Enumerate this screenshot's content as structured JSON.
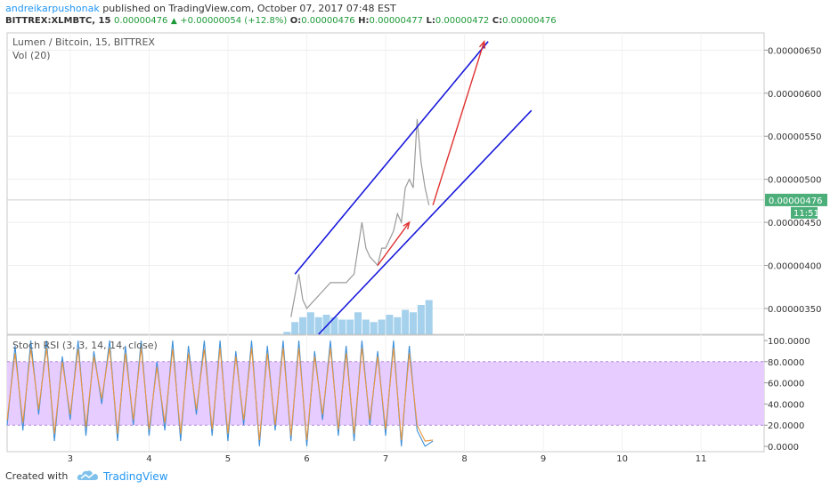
{
  "header": {
    "user": "andreikarpushonak",
    "published": "published on TradingView.com, October 07, 2017 07:48 EST",
    "symbol": "BITTREX:XLMBTC, 15",
    "price": "0.00000476",
    "change": "+0.00000054 (+12.8%)",
    "o_label": "O:",
    "o_value": "0.00000476",
    "h_label": "H:",
    "h_value": "0.00000477",
    "l_label": "L:",
    "l_value": "0.00000472",
    "c_label": "C:",
    "c_value": "0.00000476"
  },
  "footer": {
    "created_with": "Created with",
    "brand": "TradingView"
  },
  "colors": {
    "channel": "#1a1adc",
    "arrow": "#e03030",
    "price_line": "#9a9a9a",
    "volume": "#8fc5e8",
    "stoch_k": "#3d8fd8",
    "stoch_d": "#e8963c",
    "stoch_band": "#e6ccff",
    "price_tag": "#4caf7a"
  },
  "chart_data": [
    {
      "type": "line",
      "title": "Lumen / Bitcoin, 15, BITTREX",
      "volume_label": "Vol (20)",
      "ylim": [
        3.2e-06,
        6.7e-06
      ],
      "y_ticks": [
        "0.00000350",
        "0.00000400",
        "0.00000450",
        "0.00000500",
        "0.00000550",
        "0.00000600",
        "0.00000650"
      ],
      "y_tick_values": [
        3.5e-06,
        4e-06,
        4.5e-06,
        5e-06,
        5.5e-06,
        6e-06,
        6.5e-06
      ],
      "xlim": [
        2.2,
        11.8
      ],
      "x_ticks": [
        "3",
        "4",
        "5",
        "6",
        "7",
        "8",
        "9",
        "10",
        "11"
      ],
      "x_tick_values": [
        3,
        4,
        5,
        6,
        7,
        8,
        9,
        10,
        11
      ],
      "last_price_label": "0.00000476",
      "last_price": 4.76e-06,
      "countdown_label": "11:51",
      "price_series": {
        "x": [
          5.8,
          5.9,
          5.95,
          6.0,
          6.1,
          6.2,
          6.3,
          6.4,
          6.5,
          6.6,
          6.65,
          6.7,
          6.75,
          6.8,
          6.9,
          6.95,
          7.0,
          7.1,
          7.15,
          7.2,
          7.25,
          7.3,
          7.35,
          7.4,
          7.45,
          7.5,
          7.55
        ],
        "y": [
          3.4e-06,
          3.9e-06,
          3.6e-06,
          3.5e-06,
          3.6e-06,
          3.7e-06,
          3.8e-06,
          3.8e-06,
          3.8e-06,
          3.9e-06,
          4.2e-06,
          4.5e-06,
          4.2e-06,
          4.1e-06,
          4e-06,
          4.2e-06,
          4.2e-06,
          4.4e-06,
          4.6e-06,
          4.5e-06,
          4.9e-06,
          5e-06,
          4.9e-06,
          5.7e-06,
          5.2e-06,
          4.9e-06,
          4.7e-06
        ]
      },
      "volume_series": {
        "x": [
          5.75,
          5.85,
          5.95,
          6.05,
          6.15,
          6.25,
          6.35,
          6.45,
          6.55,
          6.65,
          6.75,
          6.85,
          6.95,
          7.05,
          7.15,
          7.25,
          7.35,
          7.45,
          7.55
        ],
        "v": [
          0.05,
          0.25,
          0.35,
          0.45,
          0.35,
          0.4,
          0.35,
          0.3,
          0.3,
          0.45,
          0.3,
          0.25,
          0.3,
          0.4,
          0.35,
          0.5,
          0.45,
          0.6,
          0.7
        ]
      },
      "drawings": {
        "upper_channel": [
          [
            5.85,
            3.9e-06
          ],
          [
            8.3,
            6.6e-06
          ]
        ],
        "lower_channel": [
          [
            6.15,
            3.2e-06
          ],
          [
            8.85,
            5.8e-06
          ]
        ],
        "arrow_short": [
          [
            6.9,
            4e-06
          ],
          [
            7.3,
            4.5e-06
          ]
        ],
        "arrow_long": [
          [
            7.6,
            4.7e-06
          ],
          [
            8.25,
            6.6e-06
          ]
        ]
      }
    },
    {
      "type": "line",
      "title": "Stoch RSI (3, 3, 14, 14, close)",
      "ylim": [
        -5,
        105
      ],
      "y_ticks": [
        "0.0000",
        "20.0000",
        "40.0000",
        "60.0000",
        "80.0000",
        "100.0000"
      ],
      "y_tick_values": [
        0,
        20,
        40,
        60,
        80,
        100
      ],
      "band": [
        20,
        80
      ],
      "series": [
        {
          "x": [
            2.2,
            2.3,
            2.4,
            2.5,
            2.6,
            2.7,
            2.8,
            2.9,
            3.0,
            3.1,
            3.2,
            3.3,
            3.4,
            3.5,
            3.6,
            3.7,
            3.8,
            3.9,
            4.0,
            4.1,
            4.2,
            4.3,
            4.4,
            4.5,
            4.6,
            4.7,
            4.8,
            4.9,
            5.0,
            5.1,
            5.2,
            5.3,
            5.4,
            5.5,
            5.6,
            5.7,
            5.8,
            5.9,
            6.0,
            6.1,
            6.2,
            6.3,
            6.4,
            6.5,
            6.6,
            6.7,
            6.8,
            6.9,
            7.0,
            7.1,
            7.2,
            7.3,
            7.4,
            7.5,
            7.6
          ],
          "y": [
            20,
            95,
            15,
            100,
            30,
            100,
            5,
            85,
            25,
            100,
            10,
            90,
            40,
            100,
            5,
            95,
            20,
            100,
            10,
            80,
            15,
            100,
            5,
            95,
            30,
            100,
            10,
            100,
            5,
            90,
            20,
            100,
            0,
            95,
            15,
            100,
            5,
            100,
            0,
            90,
            25,
            100,
            10,
            95,
            5,
            100,
            20,
            90,
            10,
            100,
            0,
            95,
            15,
            0,
            5
          ]
        },
        {
          "x": [
            2.2,
            2.3,
            2.4,
            2.5,
            2.6,
            2.7,
            2.8,
            2.9,
            3.0,
            3.1,
            3.2,
            3.3,
            3.4,
            3.5,
            3.6,
            3.7,
            3.8,
            3.9,
            4.0,
            4.1,
            4.2,
            4.3,
            4.4,
            4.5,
            4.6,
            4.7,
            4.8,
            4.9,
            5.0,
            5.1,
            5.2,
            5.3,
            5.4,
            5.5,
            5.6,
            5.7,
            5.8,
            5.9,
            6.0,
            6.1,
            6.2,
            6.3,
            6.4,
            6.5,
            6.6,
            6.7,
            6.8,
            6.9,
            7.0,
            7.1,
            7.2,
            7.3,
            7.4,
            7.5,
            7.6
          ],
          "y": [
            25,
            88,
            22,
            92,
            35,
            93,
            12,
            80,
            30,
            92,
            18,
            85,
            45,
            93,
            12,
            88,
            25,
            93,
            16,
            75,
            22,
            92,
            12,
            88,
            35,
            92,
            16,
            93,
            12,
            85,
            25,
            93,
            6,
            88,
            20,
            93,
            10,
            93,
            6,
            85,
            30,
            93,
            16,
            88,
            12,
            93,
            25,
            85,
            16,
            93,
            6,
            88,
            20,
            5,
            6
          ]
        }
      ],
      "xlim": [
        2.2,
        11.8
      ],
      "x_ticks": [
        "3",
        "4",
        "5",
        "6",
        "7",
        "8",
        "9",
        "10",
        "11"
      ],
      "x_tick_values": [
        3,
        4,
        5,
        6,
        7,
        8,
        9,
        10,
        11
      ]
    }
  ]
}
